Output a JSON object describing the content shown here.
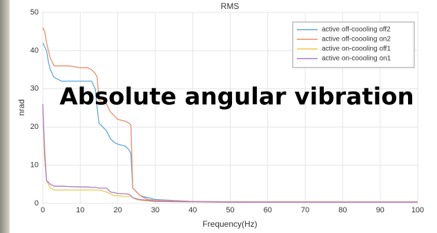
{
  "chart_data": {
    "type": "line",
    "title": "RMS",
    "xlabel": "Frequency(Hz)",
    "ylabel": "nrad",
    "annotation": "Absolute angular vibration",
    "x": [
      0,
      0.5,
      1,
      1.5,
      2,
      2.5,
      3,
      5,
      7,
      10,
      12,
      13,
      14,
      14.5,
      15,
      17,
      18,
      19,
      20,
      22,
      23,
      23.5,
      24,
      25,
      26,
      28,
      30,
      40,
      50,
      100
    ],
    "series": [
      {
        "name": "active off-coooling off2",
        "color": "#5aa6d6",
        "values": [
          42,
          41,
          40,
          37,
          35,
          34,
          33,
          32,
          32,
          32,
          32,
          32,
          30,
          25,
          21,
          19,
          17,
          16,
          15.5,
          15,
          14,
          13,
          4,
          3,
          2,
          1.5,
          1,
          0.5,
          0.4,
          0.3
        ]
      },
      {
        "name": "active off-coooling on2",
        "color": "#ec8a64",
        "values": [
          46,
          45,
          42,
          40,
          38,
          37,
          36,
          36,
          36,
          35.5,
          35.5,
          35,
          34,
          33,
          27,
          26,
          24,
          23,
          22,
          21.5,
          21,
          20.5,
          4,
          3,
          2,
          1,
          0.8,
          0.5,
          0.4,
          0.4
        ]
      },
      {
        "name": "active on-coooling off1",
        "color": "#f2c64a",
        "values": [
          25,
          15,
          6,
          5,
          4,
          3.8,
          3.5,
          3.5,
          3.5,
          3.5,
          3.5,
          3.5,
          3.5,
          3.5,
          3.5,
          3,
          2.5,
          2,
          2,
          1.8,
          1.8,
          1.8,
          1.5,
          1,
          0.8,
          0.6,
          0.5,
          0.4,
          0.3,
          0.3
        ]
      },
      {
        "name": "active on-coooling on1",
        "color": "#a678c8",
        "values": [
          26,
          12,
          6,
          5.5,
          5,
          4.8,
          4.5,
          4.5,
          4.4,
          4.3,
          4.3,
          4.2,
          4.2,
          4.1,
          4,
          4,
          3,
          2.8,
          2.6,
          2.5,
          2.4,
          2,
          1.5,
          1.2,
          1,
          0.8,
          0.5,
          0.4,
          0.3,
          0.3
        ]
      }
    ],
    "xlim": [
      0,
      100
    ],
    "xticks": [
      0,
      10,
      20,
      30,
      40,
      50,
      60,
      70,
      80,
      90,
      100
    ],
    "ylim": [
      0,
      50
    ],
    "yticks": [
      0,
      10,
      20,
      30,
      40,
      50
    ],
    "grid": true,
    "legend": "upper right"
  }
}
